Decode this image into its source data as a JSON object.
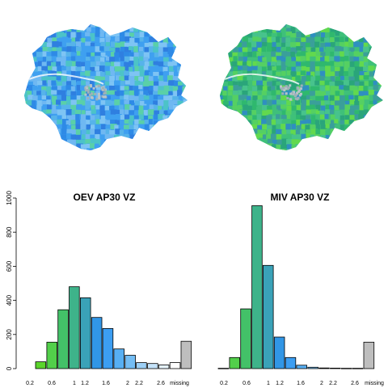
{
  "maps": [
    {
      "name": "oev-map",
      "palette": [
        "#3fa0f0",
        "#2e8ae6",
        "#56b3ea",
        "#4cc3c8",
        "#6fb8f2",
        "#2f7fe0",
        "#5ad0a8",
        "#7ec4f4"
      ]
    },
    {
      "name": "miv-map",
      "palette": [
        "#3fc07a",
        "#2fb86e",
        "#55d062",
        "#2aa57a",
        "#62d94e",
        "#3a9f9a",
        "#47c38c",
        "#2f8fc0"
      ]
    }
  ],
  "chart_data": [
    {
      "type": "bar",
      "title": "OEV AP30 VZ",
      "categories": [
        "0.2",
        "0.6",
        "1",
        "1.2",
        "1.6",
        "2",
        "2.2",
        "2.6",
        "missing"
      ],
      "bars": [
        {
          "value": 40,
          "color": "#5bd42c"
        },
        {
          "value": 155,
          "color": "#52cf4a"
        },
        {
          "value": 345,
          "color": "#43c168"
        },
        {
          "value": 480,
          "color": "#3eb38a"
        },
        {
          "value": 415,
          "color": "#3aa2b8"
        },
        {
          "value": 300,
          "color": "#3196e6"
        },
        {
          "value": 235,
          "color": "#3c9ef2"
        },
        {
          "value": 115,
          "color": "#57aff3"
        },
        {
          "value": 78,
          "color": "#74bdf4"
        },
        {
          "value": 35,
          "color": "#9dd0f6"
        },
        {
          "value": 30,
          "color": "#c5e3fa"
        },
        {
          "value": 22,
          "color": "#e6f3fd"
        },
        {
          "value": 35,
          "color": "#ffffff"
        },
        {
          "value": 160,
          "color": "#bebebe"
        }
      ],
      "ylim": [
        0,
        1000
      ],
      "yticks": [
        0,
        200,
        400,
        600,
        800,
        1000
      ]
    },
    {
      "type": "bar",
      "title": "MIV AP30 VZ",
      "categories": [
        "0.2",
        "0.6",
        "1",
        "1.2",
        "1.6",
        "2",
        "2.2",
        "2.6",
        "missing"
      ],
      "bars": [
        {
          "value": 2,
          "color": "#5bd42c"
        },
        {
          "value": 65,
          "color": "#52cf4a"
        },
        {
          "value": 350,
          "color": "#43c168"
        },
        {
          "value": 955,
          "color": "#3eb38a"
        },
        {
          "value": 605,
          "color": "#3aa2b8"
        },
        {
          "value": 185,
          "color": "#3196e6"
        },
        {
          "value": 65,
          "color": "#3c9ef2"
        },
        {
          "value": 20,
          "color": "#57aff3"
        },
        {
          "value": 8,
          "color": "#74bdf4"
        },
        {
          "value": 4,
          "color": "#9dd0f6"
        },
        {
          "value": 3,
          "color": "#c5e3fa"
        },
        {
          "value": 2,
          "color": "#e6f3fd"
        },
        {
          "value": 2,
          "color": "#ffffff"
        },
        {
          "value": 155,
          "color": "#bebebe"
        }
      ],
      "ylim": [
        0,
        1000
      ]
    }
  ]
}
